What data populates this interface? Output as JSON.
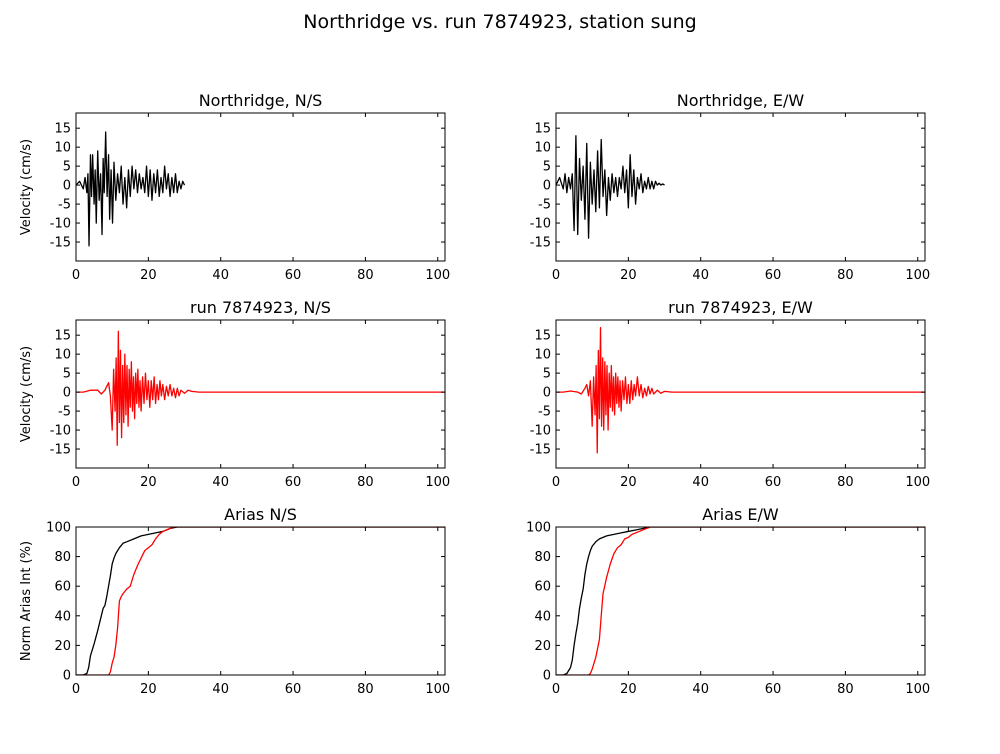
{
  "figure": {
    "title": "Northridge vs. run 7874923, station sung"
  },
  "chart_data": [
    {
      "type": "line",
      "title": "Northridge, N/S",
      "xlabel": "",
      "ylabel": "Velocity (cm/s)",
      "xlim": [
        0,
        102
      ],
      "ylim": [
        -20,
        19
      ],
      "xticks": [
        0,
        20,
        40,
        60,
        80,
        100
      ],
      "yticks": [
        -15,
        -10,
        -5,
        0,
        5,
        10,
        15
      ],
      "grid": false,
      "series": [
        {
          "color": "#000000",
          "x": [
            0,
            1,
            2,
            2.5,
            3,
            3.3,
            3.6,
            4,
            4.3,
            4.6,
            5,
            5.3,
            5.6,
            6,
            6.4,
            6.8,
            7.2,
            7.5,
            7.8,
            8.2,
            8.6,
            9,
            9.3,
            9.7,
            10.1,
            10.5,
            11,
            11.5,
            12,
            12.5,
            13,
            13.5,
            14,
            14.5,
            15,
            15.5,
            16,
            16.5,
            17,
            17.5,
            18,
            18.5,
            19,
            19.5,
            20,
            20.5,
            21,
            21.5,
            22,
            22.5,
            23,
            23.5,
            24,
            24.5,
            25,
            25.5,
            26,
            26.5,
            27,
            27.5,
            28,
            28.5,
            29,
            29.5,
            30
          ],
          "y": [
            0,
            1,
            -1,
            2,
            -2,
            3,
            -16,
            8,
            -3,
            8,
            -5,
            4,
            -10,
            9,
            -4,
            3,
            -13,
            7,
            -2,
            14,
            -3,
            8,
            -9,
            4,
            -10,
            6,
            -4,
            3,
            -2,
            5,
            -5,
            2,
            -6,
            4,
            -3,
            5,
            -1,
            4,
            -2,
            3,
            -1,
            2,
            -2,
            5,
            -3,
            4,
            -4,
            3,
            -2,
            4,
            -3,
            2,
            -2,
            5,
            -1,
            3,
            -3,
            2,
            -2,
            3,
            -2,
            1,
            -1,
            1,
            0
          ]
        }
      ]
    },
    {
      "type": "line",
      "title": "Northridge, E/W",
      "xlabel": "",
      "ylabel": "",
      "xlim": [
        0,
        102
      ],
      "ylim": [
        -20,
        19
      ],
      "xticks": [
        0,
        20,
        40,
        60,
        80,
        100
      ],
      "yticks": [
        -15,
        -10,
        -5,
        0,
        5,
        10,
        15
      ],
      "grid": false,
      "series": [
        {
          "color": "#000000",
          "x": [
            0,
            1,
            2,
            2.5,
            3,
            3.5,
            4,
            4.5,
            5,
            5.5,
            6,
            6.5,
            7,
            7.5,
            8,
            8.5,
            9,
            9.5,
            10,
            10.5,
            11,
            11.5,
            12,
            12.5,
            13,
            13.5,
            14,
            14.5,
            15,
            15.5,
            16,
            16.5,
            17,
            17.5,
            18,
            18.5,
            19,
            19.5,
            20,
            20.5,
            21,
            21.5,
            22,
            22.5,
            23,
            23.5,
            24,
            24.5,
            25,
            25.5,
            26,
            26.5,
            27,
            27.5,
            28,
            28.5,
            29,
            29.5,
            30
          ],
          "y": [
            0,
            2,
            -1,
            3,
            -2,
            2,
            -1,
            3,
            -12,
            13,
            -13,
            7,
            -4,
            5,
            -9,
            11,
            -14,
            6,
            -5,
            4,
            -7,
            9,
            -6,
            12,
            -3,
            4,
            -8,
            2,
            -4,
            3,
            -2,
            2,
            -3,
            2,
            -1,
            5,
            -2,
            4,
            -6,
            8,
            -3,
            4,
            -5,
            2,
            -1,
            3,
            -2,
            1,
            -1,
            2,
            -1,
            1,
            -1,
            1,
            0,
            0.5,
            0,
            0.3,
            0
          ]
        }
      ]
    },
    {
      "type": "line",
      "title": "run 7874923, N/S",
      "xlabel": "",
      "ylabel": "Velocity (cm/s)",
      "xlim": [
        0,
        102
      ],
      "ylim": [
        -20,
        19
      ],
      "xticks": [
        0,
        20,
        40,
        60,
        80,
        100
      ],
      "yticks": [
        -15,
        -10,
        -5,
        0,
        5,
        10,
        15
      ],
      "grid": false,
      "series": [
        {
          "color": "#ff0000",
          "x": [
            0,
            2,
            4,
            6,
            7,
            8,
            9,
            9.5,
            10,
            10.4,
            10.8,
            11.1,
            11.4,
            11.7,
            12,
            12.3,
            12.6,
            12.9,
            13.2,
            13.5,
            13.8,
            14.1,
            14.4,
            14.7,
            15,
            15.3,
            15.6,
            15.9,
            16.2,
            16.5,
            16.8,
            17.1,
            17.4,
            17.7,
            18,
            18.4,
            18.8,
            19.2,
            19.6,
            20,
            20.4,
            20.8,
            21.2,
            21.6,
            22,
            22.4,
            22.8,
            23.2,
            23.6,
            24,
            24.5,
            25,
            25.5,
            26,
            26.5,
            27,
            27.5,
            28,
            28.5,
            29,
            30,
            31,
            32,
            34,
            36,
            40,
            50,
            60,
            70,
            80,
            90,
            102
          ],
          "y": [
            0,
            0,
            0.5,
            0.5,
            -0.5,
            0.5,
            2.5,
            -1,
            -10,
            6,
            -5,
            9,
            -14,
            16,
            -8,
            11,
            -12,
            7,
            -8,
            10,
            -6,
            7,
            -9,
            6,
            -4,
            8,
            -5,
            4,
            -7,
            5,
            -3,
            6,
            -4,
            3,
            -5,
            4,
            -3,
            5,
            -2,
            3,
            -4,
            3,
            -2,
            4,
            -3,
            2,
            -2,
            3,
            -1,
            2,
            -2,
            1.5,
            -1,
            2,
            -1,
            1,
            -1.5,
            1,
            -1,
            0.5,
            -0.3,
            0.5,
            0.2,
            0,
            0,
            0,
            0,
            0,
            0,
            0,
            0,
            0
          ]
        }
      ]
    },
    {
      "type": "line",
      "title": "run 7874923, E/W",
      "xlabel": "",
      "ylabel": "",
      "xlim": [
        0,
        102
      ],
      "ylim": [
        -20,
        19
      ],
      "xticks": [
        0,
        20,
        40,
        60,
        80,
        100
      ],
      "yticks": [
        -15,
        -10,
        -5,
        0,
        5,
        10,
        15
      ],
      "grid": false,
      "series": [
        {
          "color": "#ff0000",
          "x": [
            0,
            2,
            4,
            6,
            7,
            8,
            8.5,
            9,
            9.5,
            10,
            10.4,
            10.8,
            11.1,
            11.4,
            11.7,
            12,
            12.3,
            12.6,
            12.9,
            13.2,
            13.5,
            13.8,
            14.1,
            14.4,
            14.7,
            15,
            15.3,
            15.6,
            15.9,
            16.2,
            16.5,
            16.8,
            17.1,
            17.4,
            17.7,
            18,
            18.4,
            18.8,
            19.2,
            19.6,
            20,
            20.4,
            20.8,
            21.2,
            21.6,
            22,
            22.5,
            23,
            23.5,
            24,
            24.5,
            25,
            25.5,
            26,
            26.5,
            27,
            28,
            29,
            30,
            32,
            34,
            40,
            50,
            60,
            70,
            80,
            90,
            102
          ],
          "y": [
            0,
            0,
            0.3,
            0,
            -0.5,
            1,
            2,
            -1,
            3,
            -9,
            4,
            -6,
            7,
            -16,
            11,
            -7,
            17,
            -9,
            9,
            -10,
            8,
            -6,
            7,
            -10,
            5,
            -4,
            7,
            -5,
            4,
            -6,
            5,
            -3,
            4,
            -4,
            3,
            -5,
            3,
            -2,
            4,
            -3,
            2,
            -3,
            3,
            -2,
            2,
            -1,
            4,
            -1,
            2,
            -1.5,
            1,
            -1,
            1.5,
            -0.5,
            1,
            -0.5,
            0.5,
            -0.3,
            0.2,
            0,
            0,
            0,
            0,
            0,
            0,
            0,
            0,
            0
          ]
        }
      ]
    },
    {
      "type": "line",
      "title": "Arias N/S",
      "xlabel": "",
      "ylabel": "Norm Arias Int (%)",
      "xlim": [
        0,
        102
      ],
      "ylim": [
        0,
        100
      ],
      "xticks": [
        0,
        20,
        40,
        60,
        80,
        100
      ],
      "yticks": [
        0,
        20,
        40,
        60,
        80,
        100
      ],
      "grid": false,
      "series": [
        {
          "color": "#000000",
          "x": [
            0,
            2,
            3,
            3.5,
            4,
            4.5,
            5,
            6,
            6.5,
            7,
            7.5,
            8,
            8.5,
            9,
            9.5,
            10,
            10.5,
            11,
            12,
            13,
            14,
            16,
            18,
            20,
            22,
            24,
            26,
            28,
            30,
            40,
            102
          ],
          "y": [
            0,
            0,
            1,
            5,
            13,
            17,
            21,
            30,
            35,
            40,
            45,
            47,
            53,
            60,
            67,
            75,
            79,
            82,
            86,
            89,
            90,
            92,
            94,
            95,
            96,
            97,
            99,
            100,
            100,
            100,
            100
          ]
        }
      ]
    },
    {
      "type": "line",
      "title": "Arias E/W",
      "xlabel": "",
      "ylabel": "",
      "xlim": [
        0,
        102
      ],
      "ylim": [
        0,
        100
      ],
      "xticks": [
        0,
        20,
        40,
        60,
        80,
        100
      ],
      "yticks": [
        0,
        20,
        40,
        60,
        80,
        100
      ],
      "grid": false,
      "series": [
        {
          "color": "#000000",
          "x": [
            0,
            2,
            3,
            4,
            4.5,
            5,
            5.5,
            6,
            6.5,
            7,
            7.5,
            8,
            8.5,
            9,
            9.5,
            10,
            11,
            12,
            13,
            14,
            16,
            18,
            20,
            22,
            24,
            26,
            28,
            30,
            40,
            102
          ],
          "y": [
            0,
            0,
            1,
            5,
            10,
            20,
            28,
            35,
            45,
            52,
            58,
            68,
            75,
            80,
            84,
            87,
            90,
            92,
            93,
            94,
            95,
            96,
            97,
            98,
            99,
            100,
            100,
            100,
            100,
            100
          ]
        }
      ]
    }
  ],
  "overlay": [
    {
      "panel": 4,
      "color": "#ff0000",
      "x": [
        0,
        5,
        9,
        9.5,
        10,
        10.5,
        11,
        11.5,
        12,
        12.5,
        13,
        14,
        15,
        16,
        17,
        18,
        19,
        20,
        21,
        22,
        23,
        24,
        25,
        26,
        27,
        28,
        30,
        40,
        102
      ],
      "y": [
        0,
        0,
        0,
        2,
        8,
        12,
        20,
        32,
        50,
        53,
        55,
        58,
        60,
        68,
        74,
        79,
        84,
        86,
        88,
        92,
        95,
        97,
        98,
        99,
        100,
        100,
        100,
        100,
        100
      ]
    },
    {
      "panel": 5,
      "color": "#ff0000",
      "x": [
        0,
        5,
        9,
        9.5,
        10,
        10.5,
        11,
        11.5,
        12,
        12.5,
        13,
        14,
        15,
        16,
        17,
        18,
        19,
        20,
        21,
        22,
        23,
        24,
        25,
        26,
        28,
        30,
        40,
        102
      ],
      "y": [
        0,
        0,
        0,
        1,
        4,
        8,
        12,
        18,
        24,
        40,
        55,
        66,
        75,
        82,
        86,
        88,
        92,
        93,
        95,
        96,
        97,
        98,
        99,
        100,
        100,
        100,
        100,
        100
      ]
    }
  ]
}
